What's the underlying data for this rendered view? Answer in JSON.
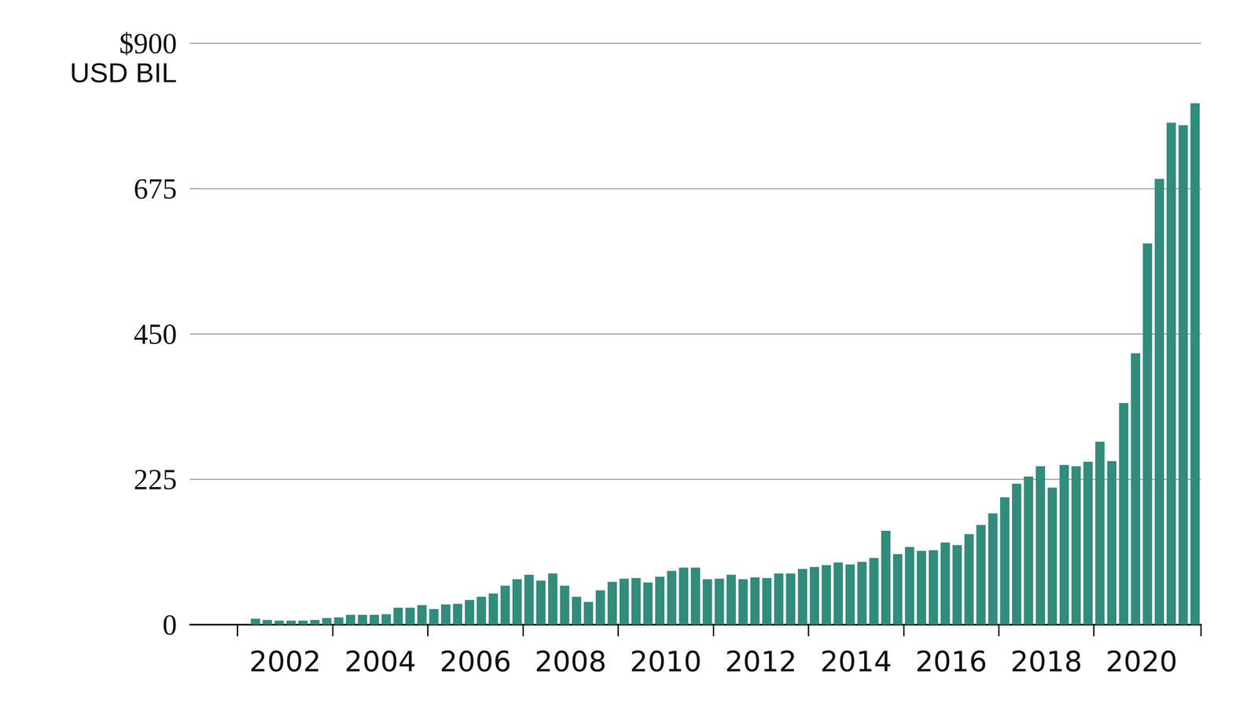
{
  "chart_data": {
    "type": "bar",
    "y_label": "USD BIL",
    "categories": [
      null,
      null,
      null,
      null,
      null,
      null,
      null,
      "2002",
      null,
      null,
      null,
      null,
      null,
      null,
      null,
      "2004",
      null,
      null,
      null,
      null,
      null,
      null,
      null,
      "2006",
      null,
      null,
      null,
      null,
      null,
      null,
      null,
      "2008",
      null,
      null,
      null,
      null,
      null,
      null,
      null,
      "2010",
      null,
      null,
      null,
      null,
      null,
      null,
      null,
      "2012",
      null,
      null,
      null,
      null,
      null,
      null,
      null,
      "2014",
      null,
      null,
      null,
      null,
      null,
      null,
      null,
      "2016",
      null,
      null,
      null,
      null,
      null,
      null,
      null,
      "2018",
      null,
      null,
      null,
      null,
      null,
      null,
      null,
      "2020",
      null,
      null,
      null,
      null,
      null
    ],
    "values": [
      null,
      null,
      null,
      null,
      null,
      9,
      7,
      6,
      6,
      6,
      7,
      10,
      11,
      15,
      15,
      15,
      16,
      26,
      26,
      30,
      24,
      31,
      32,
      38,
      43,
      48,
      60,
      70,
      77,
      68,
      79,
      60,
      43,
      35,
      53,
      66,
      71,
      72,
      65,
      74,
      83,
      88,
      88,
      70,
      71,
      77,
      70,
      73,
      72,
      79,
      79,
      86,
      89,
      92,
      96,
      93,
      97,
      103,
      145,
      109,
      120,
      114,
      115,
      127,
      123,
      140,
      154,
      172,
      197,
      218,
      229,
      245,
      212,
      247,
      245,
      252,
      283,
      253,
      343,
      420,
      590,
      690,
      777,
      773,
      807
    ],
    "color": "#318c7c",
    "ylim": [
      0,
      900
    ],
    "yticks": [
      0,
      225,
      450,
      675,
      {
        "value": 900,
        "label": "$900"
      }
    ],
    "grid": true
  }
}
